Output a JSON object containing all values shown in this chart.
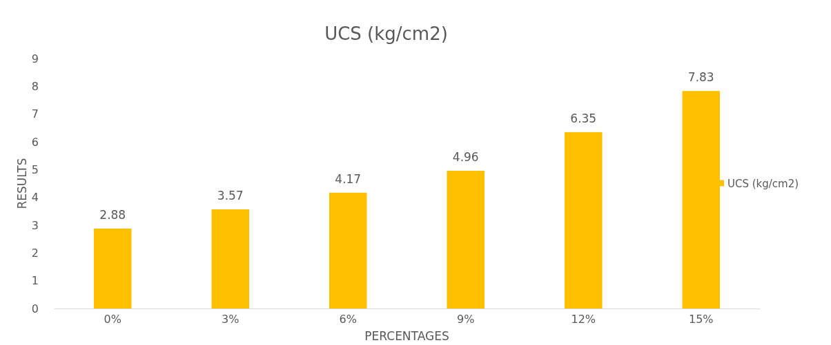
{
  "chart_data": {
    "type": "bar",
    "title": "UCS (kg/cm2)",
    "xlabel": "PERCENTAGES",
    "ylabel": "RESULTS",
    "categories": [
      "0%",
      "3%",
      "6%",
      "9%",
      "12%",
      "15%"
    ],
    "series": [
      {
        "name": "UCS (kg/cm2)",
        "color": "#ffc000",
        "values": [
          2.88,
          3.57,
          4.17,
          4.96,
          6.35,
          7.83
        ]
      }
    ],
    "ylim": [
      0,
      9
    ],
    "yticks": [
      0,
      1,
      2,
      3,
      4,
      5,
      6,
      7,
      8,
      9
    ],
    "data_labels": true,
    "legend": "right"
  }
}
